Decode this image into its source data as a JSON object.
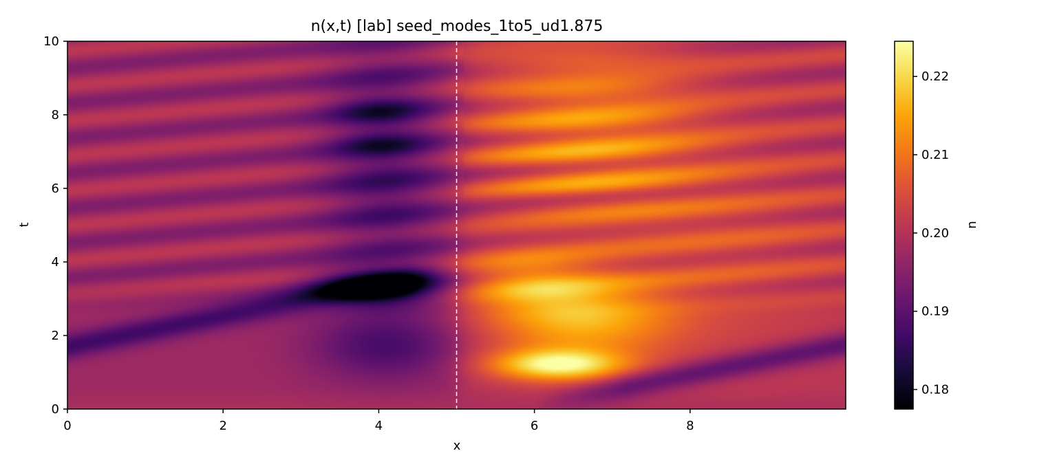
{
  "chart_data": {
    "type": "heatmap",
    "title": "n(x,t)  [lab]  seed_modes_1to5_ud1.875",
    "xlabel": "x",
    "ylabel": "t",
    "colorbar_label": "n",
    "colormap": "inferno",
    "xlim": [
      0,
      10
    ],
    "ylim": [
      0,
      10
    ],
    "vlim": [
      0.1775,
      0.2245
    ],
    "x_ticks": [
      0,
      2,
      4,
      6,
      8
    ],
    "x_tick_labels": [
      "0",
      "2",
      "4",
      "6",
      "8"
    ],
    "y_ticks": [
      0,
      2,
      4,
      6,
      8,
      10
    ],
    "y_tick_labels": [
      "0",
      "2",
      "4",
      "6",
      "8",
      "10"
    ],
    "colorbar_ticks": [
      0.18,
      0.19,
      0.2,
      0.21,
      0.22
    ],
    "colorbar_tick_labels": [
      "0.18",
      "0.19",
      "0.20",
      "0.21",
      "0.22"
    ],
    "background_value": 0.199,
    "reference_line": {
      "x": 5,
      "style": "dashed",
      "color": "#ffffff"
    },
    "features": [
      {
        "kind": "min",
        "x": 4.0,
        "t": 3.3,
        "value": 0.178
      },
      {
        "kind": "min",
        "x": 4.0,
        "t": 8.1,
        "value": 0.183
      },
      {
        "kind": "min",
        "x": 4.0,
        "t": 7.2,
        "value": 0.184
      },
      {
        "kind": "min",
        "x": 0.3,
        "t": 1.7,
        "value": 0.186
      },
      {
        "kind": "min",
        "x": 8.8,
        "t": 1.5,
        "value": 0.187
      },
      {
        "kind": "max",
        "x": 6.3,
        "t": 1.2,
        "value": 0.2235
      },
      {
        "kind": "max",
        "x": 6.6,
        "t": 2.4,
        "value": 0.219
      },
      {
        "kind": "max",
        "x": 6.5,
        "t": 7.0,
        "value": 0.214
      },
      {
        "kind": "max",
        "x": 6.5,
        "t": 8.7,
        "value": 0.212
      }
    ]
  }
}
